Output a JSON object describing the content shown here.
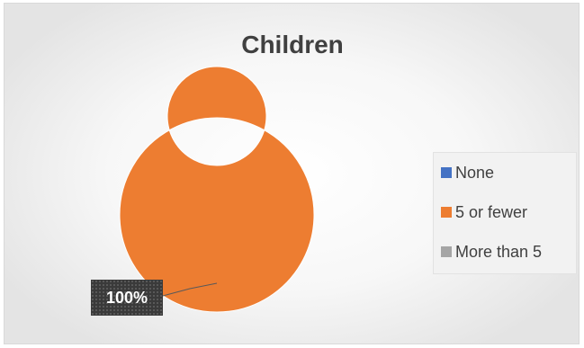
{
  "chart_data": {
    "type": "doughnut",
    "title": "Children",
    "categories": [
      "None",
      "5 or fewer",
      "More than 5"
    ],
    "values": [
      0,
      100,
      0
    ],
    "colors": [
      "#4472c4",
      "#ed7d31",
      "#a5a5a5"
    ],
    "data_labels": [
      "",
      "100%",
      ""
    ],
    "legend_position": "right",
    "grid": false
  }
}
